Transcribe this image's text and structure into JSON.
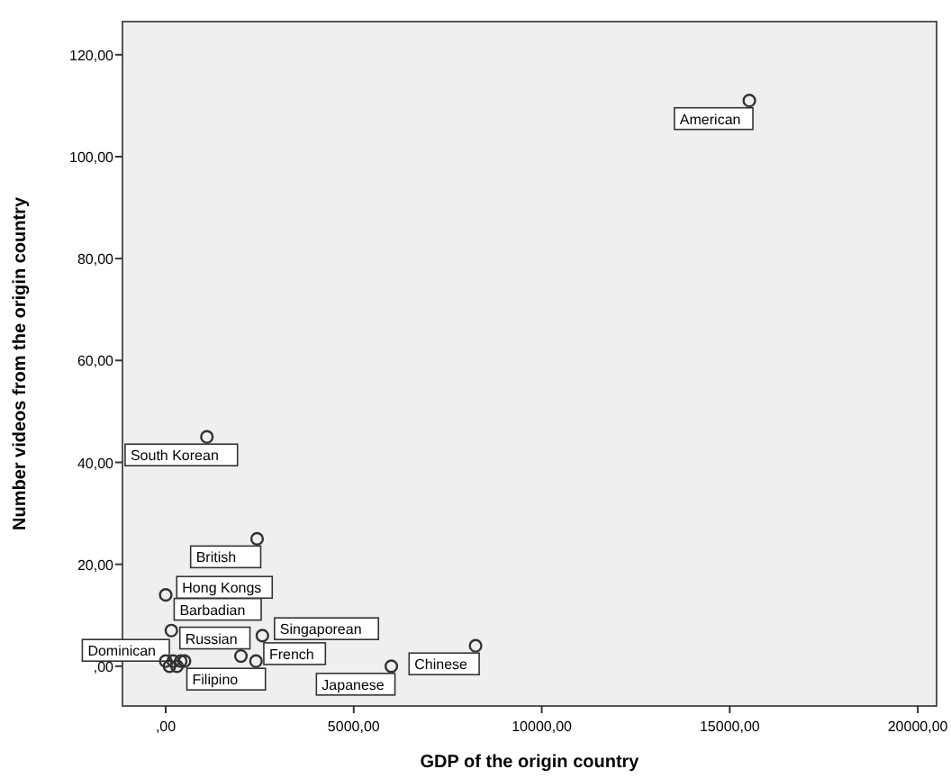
{
  "chart_data": {
    "type": "scatter",
    "xlabel": "GDP of the origin country",
    "ylabel": "Number videos from the origin country",
    "x": [
      15520,
      1095,
      2430,
      0,
      150,
      2570,
      6000,
      8240,
      2000,
      2400,
      400,
      0,
      100,
      200,
      300,
      500
    ],
    "values": [
      111,
      45,
      25,
      14,
      7,
      6,
      0,
      4,
      2,
      1,
      1,
      1,
      0,
      1,
      0,
      1
    ],
    "color": "#333333",
    "marker": "circle",
    "grid": false,
    "xlim": [
      -1150,
      20500
    ],
    "ylim": [
      -7.8,
      126.5
    ],
    "xticks": [
      {
        "value": 0,
        "label": ",00"
      },
      {
        "value": 5000,
        "label": "5000,00"
      },
      {
        "value": 10000,
        "label": "10000,00"
      },
      {
        "value": 15000,
        "label": "15000,00"
      },
      {
        "value": 20000,
        "label": "20000,00"
      }
    ],
    "yticks": [
      {
        "value": 0,
        "label": ",00"
      },
      {
        "value": 20,
        "label": "20,00"
      },
      {
        "value": 40,
        "label": "40,00"
      },
      {
        "value": 60,
        "label": "60,00"
      },
      {
        "value": 80,
        "label": "80,00"
      },
      {
        "value": 100,
        "label": "100,00"
      },
      {
        "value": 120,
        "label": "120,00"
      }
    ],
    "annotations": [
      {
        "text": "American",
        "x": 15520,
        "y": 111
      },
      {
        "text": "South Korean",
        "x": 1095,
        "y": 45
      },
      {
        "text": "British",
        "x": 2430,
        "y": 25
      },
      {
        "text": "Barbadian",
        "x": 0,
        "y": 14
      },
      {
        "text": "Hong Kongs",
        "x": 150,
        "y": 7
      },
      {
        "text": "French",
        "x": 2570,
        "y": 6
      },
      {
        "text": "Russian",
        "x": 2000,
        "y": 2
      },
      {
        "text": "Japanese",
        "x": 6000,
        "y": 0
      },
      {
        "text": "Chinese",
        "x": 8240,
        "y": 4
      },
      {
        "text": "Filipino",
        "x": 400,
        "y": 1
      },
      {
        "text": "Singaporean",
        "x": 2400,
        "y": 1
      },
      {
        "text": "Dominican",
        "x": 0,
        "y": 1
      }
    ]
  }
}
